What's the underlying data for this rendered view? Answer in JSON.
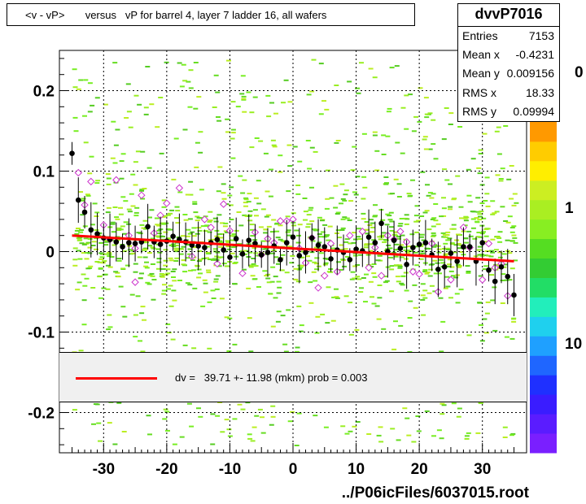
{
  "title": "<v - vP>       versus   vP for barrel 4, layer 7 ladder 16, all wafers",
  "stats": {
    "name": "dvvP7016",
    "rows": [
      {
        "label": "Entries",
        "value": "7153"
      },
      {
        "label": "Mean x",
        "value": "-0.4231"
      },
      {
        "label": "Mean y",
        "value": "0.009156"
      },
      {
        "label": "RMS x",
        "value": "18.33"
      },
      {
        "label": "RMS y",
        "value": "0.09994"
      }
    ]
  },
  "fit_legend": "dv =   39.71 +- 11.98 (mkm) prob = 0.003",
  "footer": "../P06icFiles/6037015.root",
  "colors": {
    "fit_line": "#ff0000",
    "profile_points": "#000000",
    "open_markers": "#cc33cc",
    "density": "#77ee22"
  },
  "colorbar_labels": [
    "0",
    "1",
    "10"
  ],
  "chart_data": {
    "type": "scatter",
    "xlim": [
      -37,
      37
    ],
    "ylim": [
      -0.25,
      0.25
    ],
    "xticks": [
      -30,
      -20,
      -10,
      0,
      10,
      20,
      30
    ],
    "yticks": [
      0.2,
      0.1,
      0,
      -0.1,
      -0.2
    ],
    "ytick_labels": [
      "0.2",
      "0.1",
      "0",
      "-0.1",
      "-0.2"
    ],
    "grid": true,
    "fit": {
      "x": [
        -35,
        35
      ],
      "y": [
        0.02,
        -0.012
      ]
    },
    "profile": {
      "x": [
        -35,
        -34,
        -33,
        -32,
        -31,
        -30,
        -29,
        -28,
        -27,
        -26,
        -25,
        -24,
        -23,
        -22,
        -21,
        -20,
        -19,
        -18,
        -17,
        -16,
        -15,
        -14,
        -13,
        -12,
        -11,
        -10,
        -9,
        -8,
        -7,
        -6,
        -5,
        -4,
        -3,
        -2,
        -1,
        0,
        1,
        2,
        3,
        4,
        5,
        6,
        7,
        8,
        9,
        10,
        11,
        12,
        13,
        14,
        15,
        16,
        17,
        18,
        19,
        20,
        21,
        22,
        23,
        24,
        25,
        26,
        27,
        28,
        29,
        30,
        31,
        32,
        33,
        34,
        35
      ],
      "y": [
        0.122,
        0.064,
        0.049,
        0.027,
        0.022,
        0.017,
        0.015,
        0.012,
        0.006,
        0.011,
        0.01,
        0.012,
        0.031,
        0.012,
        0.009,
        0.013,
        0.019,
        0.015,
        0.012,
        0.008,
        0.007,
        0.005,
        0.011,
        0.015,
        0.002,
        -0.007,
        0.016,
        -0.003,
        0.014,
        0.01,
        -0.004,
        -0.001,
        0.007,
        -0.01,
        0.011,
        0.018,
        -0.005,
        -0.001,
        0.017,
        0.008,
        0.006,
        -0.009,
        0.002,
        -0.001,
        -0.01,
        0.003,
        0.001,
        0.018,
        0.011,
        0.035,
        0.0,
        0.014,
        0.004,
        -0.016,
        0.005,
        0.009,
        0.011,
        -0.004,
        -0.022,
        -0.019,
        -0.002,
        -0.012,
        0.006,
        0.006,
        -0.012,
        0.011,
        -0.023,
        -0.037,
        -0.019,
        -0.031,
        -0.054
      ]
    },
    "open_points": {
      "x": [
        -34,
        -33,
        -32,
        -30,
        -29,
        -28,
        -26,
        -25,
        -25,
        -24,
        -22,
        -21,
        -20,
        -18,
        -16,
        -14,
        -13,
        -12,
        -11,
        -10,
        -8,
        -6,
        -5,
        -4,
        -3,
        -2,
        -1,
        0,
        1,
        2,
        3,
        4,
        5,
        6,
        7,
        9,
        11,
        12,
        13,
        14,
        15,
        16,
        17,
        18,
        19,
        20,
        22,
        23,
        25,
        27,
        28,
        30,
        31,
        32,
        33,
        34
      ],
      "y": [
        0.098,
        0.058,
        0.087,
        0.033,
        0.015,
        0.089,
        0.02,
        -0.038,
        0.004,
        0.07,
        0.023,
        0.045,
        0.06,
        0.079,
        -0.006,
        0.04,
        0.03,
        -0.015,
        0.059,
        0.026,
        -0.027,
        0.024,
        -0.004,
        0.016,
        0.011,
        0.038,
        0.038,
        0.04,
        0.004,
        -0.014,
        0.017,
        -0.045,
        -0.03,
        0.01,
        -0.025,
        0.02,
        0.025,
        -0.02,
        0.005,
        -0.03,
        0.02,
        0.015,
        0.025,
        0.012,
        -0.025,
        -0.028,
        0.01,
        -0.05,
        -0.035,
        0.03,
        0.005,
        -0.035,
        0.01,
        -0.02,
        -0.015,
        -0.055
      ]
    }
  }
}
